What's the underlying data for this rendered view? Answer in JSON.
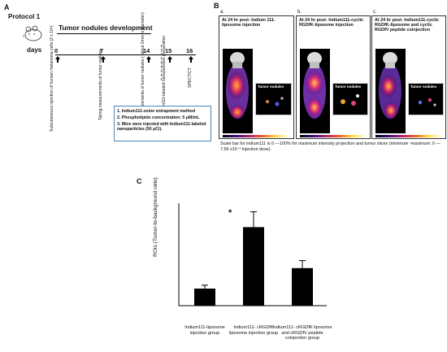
{
  "panel_a": {
    "letter": "A",
    "protocol_title": "Protocol 1",
    "timeline_title": "Tumor nodules development",
    "days_label": "days",
    "days": [
      "0",
      "7",
      "14",
      "15",
      "16"
    ],
    "events": [
      "Subcutaneous injection of human melanoma cells (2 x 10⁶)",
      "Taking measurements of tumor nodules",
      "Taking measurements of tumor nodules ( about 2mm in diameter)",
      "Indium111-labeled nanoparticles preparation",
      "SPECT/CT"
    ],
    "notes": [
      "1.  Indium111-oxine entrapment method",
      "2.  Phospholipids concentration: 5 μM/mL",
      "3.  Mice were injected with Indium111-labeled nanoparticles (50 μCi)."
    ]
  },
  "panel_b": {
    "letter": "B",
    "subpanels": [
      {
        "letter": "a.",
        "title": "At 24 hr post- Indium 111-liposome injection",
        "inset": "Tumor nodules"
      },
      {
        "letter": "b.",
        "title": "At 24 hr post- Indium111-cyclic RGDfK-liposome injection",
        "inset": "Tumor nodules"
      },
      {
        "letter": "c.",
        "title": "At 24 hr post- Indium111-cyclic RGDfK-liposome and cyclic RGDfV peptide coinjection",
        "inset": "Tumor nodules"
      }
    ],
    "scale_caption": "Scale bar for indium111 is 0 —100% for maximum intensity projection and tumor slices (minimum -maximum: 0 —7.66 x10⁻³ injection dose)."
  },
  "panel_c": {
    "letter": "C",
    "significance_mark": "*"
  },
  "chart_data": {
    "type": "bar",
    "ylabel": "ROIs (Tumor-to-background ratio)",
    "categories": [
      "Indium111-liposome injection group",
      "Indium111- cRGDfK liposome injection group",
      "Indium111- cRGDfK liposome and cRGDfV peptide coinjection group"
    ],
    "values": [
      0.5,
      2.3,
      1.1
    ],
    "errors": [
      0.1,
      0.45,
      0.22
    ],
    "ylim": [
      0,
      3
    ],
    "bar_color": "#000000"
  }
}
